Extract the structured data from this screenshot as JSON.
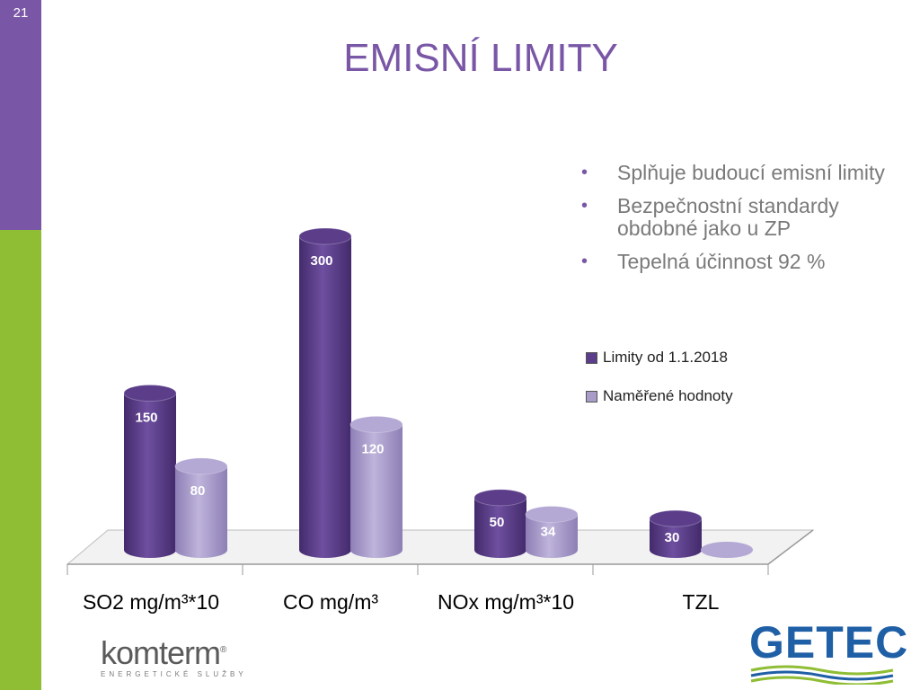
{
  "slide_number": "21",
  "title": "EMISNÍ LIMITY",
  "bullets": [
    "Splňuje budoucí emisní limity",
    "Bezpečnostní standardy obdobné jako u ZP",
    "Tepelná účinnost 92 %"
  ],
  "colors": {
    "accent": "#7a57a6",
    "green": "#8fbd34",
    "series_dark": "#5b3d8a",
    "series_light": "#a99cc9"
  },
  "logos": {
    "left": "komterm",
    "left_registered": "®",
    "left_sub": "ENERGETICKÉ SLUŽBY",
    "right": "GETEC"
  },
  "chart_data": {
    "type": "bar",
    "categories": [
      "SO2 mg/m³*10",
      "CO mg/m³",
      "NOx mg/m³*10",
      "TZL"
    ],
    "series": [
      {
        "name": "Limity od 1.1.2018",
        "values": [
          150,
          300,
          50,
          30
        ]
      },
      {
        "name": "Naměřené hodnoty",
        "values": [
          80,
          120,
          34,
          0
        ]
      }
    ],
    "data_labels": [
      [
        "150",
        "300",
        "50",
        "30"
      ],
      [
        "80",
        "120",
        "34",
        ""
      ]
    ],
    "ylim": [
      0,
      300
    ],
    "legend": "right",
    "grid": false
  }
}
